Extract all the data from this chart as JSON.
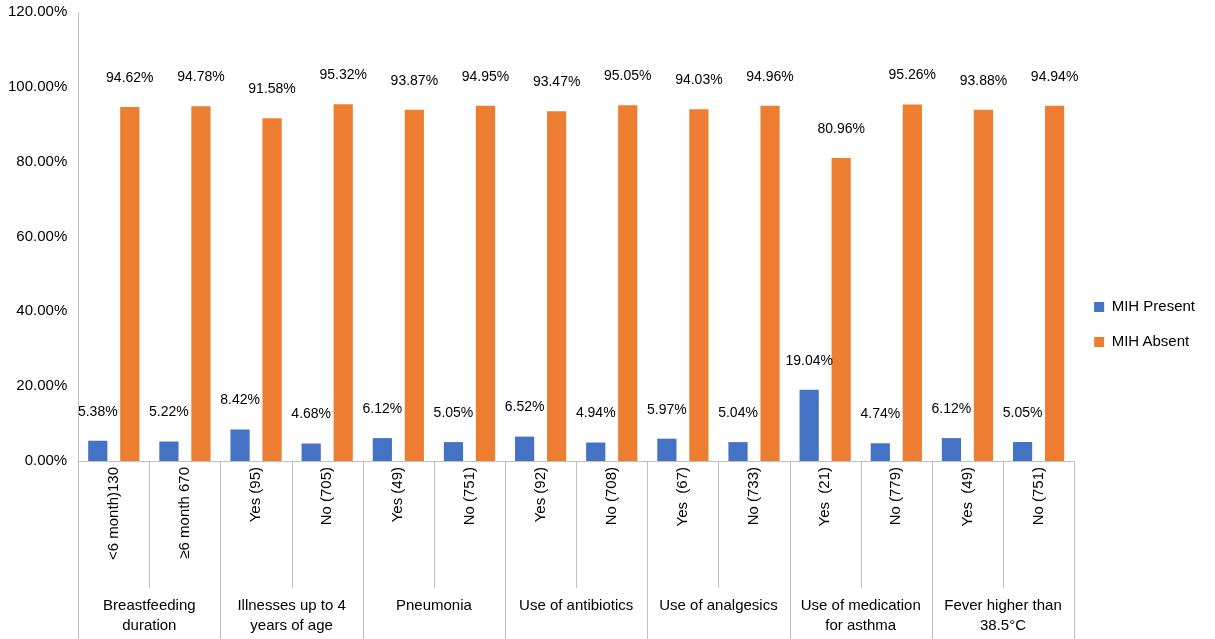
{
  "chart_data": {
    "type": "bar",
    "categories": [
      "<6 month)130",
      "≥6 month 670",
      "Yes (95)",
      "No (705)",
      "Yes (49)",
      "No (751)",
      "Yes (92)",
      "No (708)",
      "Yes  (67)",
      "No (733)",
      "Yes  (21)",
      "No (779)",
      "Yes  (49)",
      "No (751)"
    ],
    "series": [
      {
        "name": "MIH Present",
        "color": "#4472c4",
        "values": [
          5.38,
          5.22,
          8.42,
          4.68,
          6.12,
          5.05,
          6.52,
          4.94,
          5.97,
          5.04,
          19.04,
          4.74,
          6.12,
          5.05
        ],
        "value_labels": [
          "5.38%",
          "5.22%",
          "8.42%",
          "4.68%",
          "6.12%",
          "5.05%",
          "6.52%",
          "4.94%",
          "5.97%",
          "5.04%",
          "19.04%",
          "4.74%",
          "6.12%",
          "5.05%"
        ]
      },
      {
        "name": "MIH Absent",
        "color": "#ed7d31",
        "values": [
          94.62,
          94.78,
          91.58,
          95.32,
          93.87,
          94.95,
          93.47,
          95.05,
          94.03,
          94.96,
          80.96,
          95.26,
          93.88,
          94.94
        ],
        "value_labels": [
          "94.62%",
          "94.78%",
          "91.58%",
          "95.32%",
          "93.87%",
          "94.95%",
          "93.47%",
          "95.05%",
          "94.03%",
          "94.96%",
          "80.96%",
          "95.26%",
          "93.88%",
          "94.94%"
        ]
      }
    ],
    "annotations": [
      "Breastfeeding duration",
      "Illnesses up to 4 years of age",
      "Pneumonia",
      "Use of antibiotics",
      "Use of analgesics",
      "Use of medication for asthma",
      "Fever higher than 38.5°C"
    ],
    "ylim": [
      0,
      120
    ],
    "yticks": [
      {
        "value": 0,
        "label": "0.00%"
      },
      {
        "value": 20,
        "label": "20.00%"
      },
      {
        "value": 40,
        "label": "40.00%"
      },
      {
        "value": 60,
        "label": "60.00%"
      },
      {
        "value": 80,
        "label": "80.00%"
      },
      {
        "value": 100,
        "label": "100.00%"
      },
      {
        "value": 120,
        "label": "120.00%"
      }
    ],
    "grid": false,
    "legend": "right"
  }
}
